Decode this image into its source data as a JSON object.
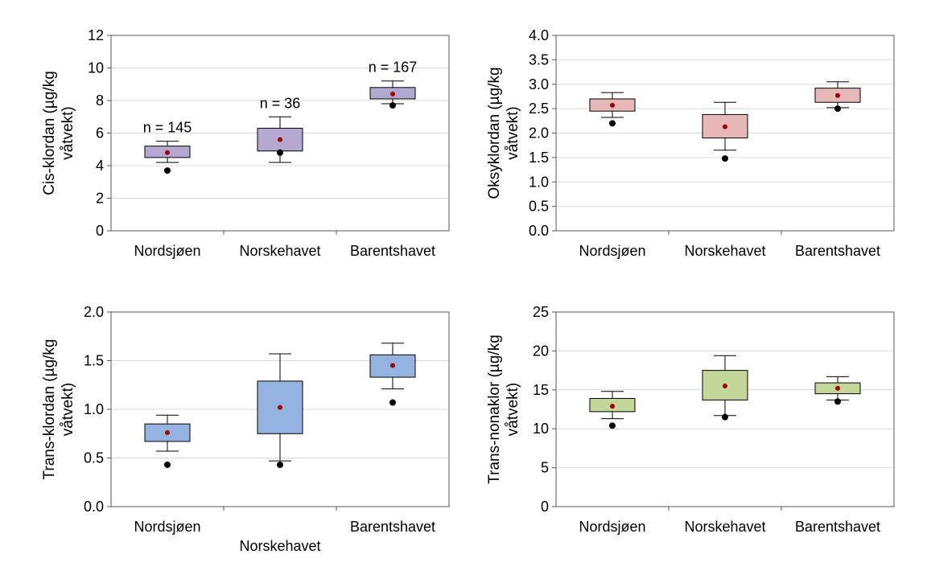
{
  "chart_data": [
    {
      "type": "box",
      "ylabel_lines": [
        "Cis-klordan (µg/kg",
        "våtvekt)"
      ],
      "ylim": [
        0,
        12
      ],
      "yticks": [
        0,
        2,
        4,
        6,
        8,
        10,
        12
      ],
      "ytick_labels": [
        "0",
        "2",
        "4",
        "6",
        "8",
        "10",
        "12"
      ],
      "grid": true,
      "box_color": "#b4a7d0",
      "categories": [
        "Nordsjøen",
        "Norskehavet",
        "Barentshavet"
      ],
      "boxes": [
        {
          "category": "Nordsjøen",
          "whisker_low": 4.2,
          "q1": 4.5,
          "q3": 5.2,
          "whisker_high": 5.5,
          "mean": 4.8,
          "outlier": 3.7,
          "n_label": "n = 145"
        },
        {
          "category": "Norskehavet",
          "whisker_low": 4.2,
          "q1": 4.9,
          "q3": 6.3,
          "whisker_high": 7.0,
          "mean": 5.6,
          "outlier": 4.8,
          "n_label": "n = 36"
        },
        {
          "category": "Barentshavet",
          "whisker_low": 7.8,
          "q1": 8.1,
          "q3": 8.8,
          "whisker_high": 9.2,
          "mean": 8.4,
          "outlier": 7.7,
          "n_label": "n = 167"
        }
      ]
    },
    {
      "type": "box",
      "ylabel_lines": [
        "Oksyklordan (µg/kg",
        "våtvekt)"
      ],
      "ylim": [
        0,
        4
      ],
      "yticks": [
        0,
        0.5,
        1,
        1.5,
        2,
        2.5,
        3,
        3.5,
        4
      ],
      "ytick_labels": [
        "0.0",
        "0.5",
        "1.0",
        "1.5",
        "2.0",
        "2.5",
        "3.0",
        "3.5",
        "4.0"
      ],
      "grid": true,
      "box_color": "#e6b8b8",
      "categories": [
        "Nordsjøen",
        "Norskehavet",
        "Barentshavet"
      ],
      "boxes": [
        {
          "category": "Nordsjøen",
          "whisker_low": 2.32,
          "q1": 2.45,
          "q3": 2.7,
          "whisker_high": 2.83,
          "mean": 2.57,
          "outlier": 2.2
        },
        {
          "category": "Norskehavet",
          "whisker_low": 1.65,
          "q1": 1.9,
          "q3": 2.38,
          "whisker_high": 2.63,
          "mean": 2.13,
          "outlier": 1.48
        },
        {
          "category": "Barentshavet",
          "whisker_low": 2.52,
          "q1": 2.63,
          "q3": 2.92,
          "whisker_high": 3.05,
          "mean": 2.77,
          "outlier": 2.5
        }
      ]
    },
    {
      "type": "box",
      "ylabel_lines": [
        "Trans-klordan (µg/kg",
        "våtvekt)"
      ],
      "ylim": [
        0,
        2
      ],
      "yticks": [
        0,
        0.5,
        1,
        1.5,
        2
      ],
      "ytick_labels": [
        "0.0",
        "0.5",
        "1.0",
        "1.5",
        "2.0"
      ],
      "grid": true,
      "box_color": "#95b3e0",
      "categories": [
        "Nordsjøen",
        "Norskehavet",
        "Barentshavet"
      ],
      "staggered_categories": true,
      "boxes": [
        {
          "category": "Nordsjøen",
          "whisker_low": 0.57,
          "q1": 0.67,
          "q3": 0.85,
          "whisker_high": 0.94,
          "mean": 0.76,
          "outlier": 0.43
        },
        {
          "category": "Norskehavet",
          "whisker_low": 0.47,
          "q1": 0.75,
          "q3": 1.29,
          "whisker_high": 1.57,
          "mean": 1.02,
          "outlier": 0.43
        },
        {
          "category": "Barentshavet",
          "whisker_low": 1.21,
          "q1": 1.33,
          "q3": 1.56,
          "whisker_high": 1.68,
          "mean": 1.45,
          "outlier": 1.07
        }
      ]
    },
    {
      "type": "box",
      "ylabel_lines": [
        "Trans-nonaklor (µg/kg",
        "våtvekt)"
      ],
      "ylim": [
        0,
        25
      ],
      "yticks": [
        0,
        5,
        10,
        15,
        20,
        25
      ],
      "ytick_labels": [
        "0",
        "5",
        "10",
        "15",
        "20",
        "25"
      ],
      "grid": true,
      "box_color": "#c4d79b",
      "categories": [
        "Nordsjøen",
        "Norskehavet",
        "Barentshavet"
      ],
      "boxes": [
        {
          "category": "Nordsjøen",
          "whisker_low": 11.3,
          "q1": 12.2,
          "q3": 13.9,
          "whisker_high": 14.8,
          "mean": 12.9,
          "outlier": 10.4
        },
        {
          "category": "Norskehavet",
          "whisker_low": 11.7,
          "q1": 13.7,
          "q3": 17.5,
          "whisker_high": 19.4,
          "mean": 15.5,
          "outlier": 11.5
        },
        {
          "category": "Barentshavet",
          "whisker_low": 13.7,
          "q1": 14.5,
          "q3": 15.9,
          "whisker_high": 16.7,
          "mean": 15.2,
          "outlier": 13.5
        }
      ]
    }
  ]
}
